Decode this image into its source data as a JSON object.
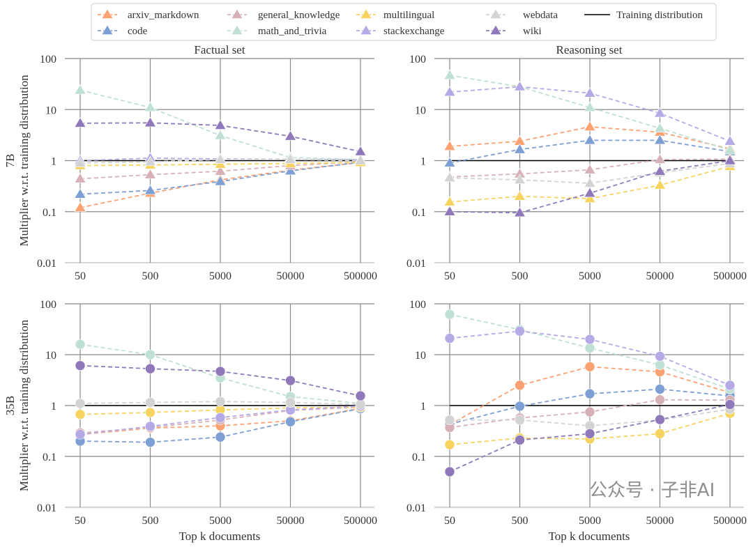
{
  "legend": {
    "placement": "top-center",
    "items": [
      {
        "key": "arxiv_markdown",
        "label": "arxiv_markdown"
      },
      {
        "key": "code",
        "label": "code"
      },
      {
        "key": "general_knowledge",
        "label": "general_knowledge"
      },
      {
        "key": "math_and_trivia",
        "label": "math_and_trivia"
      },
      {
        "key": "multilingual",
        "label": "multilingual"
      },
      {
        "key": "stackexchange",
        "label": "stackexchange"
      },
      {
        "key": "webdata",
        "label": "webdata"
      },
      {
        "key": "wiki",
        "label": "wiki"
      }
    ],
    "reference_label": "Training distribution"
  },
  "colors": {
    "arxiv_markdown": "#fca272",
    "code": "#7d9fd3",
    "general_knowledge": "#d8b1b7",
    "math_and_trivia": "#bfe0d3",
    "multilingual": "#f7d35f",
    "stackexchange": "#b5a9e6",
    "webdata": "#d3d3d3",
    "wiki": "#9079bb",
    "reference": "#000000",
    "grid": "#888888"
  },
  "watermark": "公众号 · 子非AI",
  "row_labels": [
    "7B",
    "35B"
  ],
  "chart_data": [
    {
      "type": "line",
      "title": "Factual set",
      "row": "7B",
      "ylabel": "Multiplier w.r.t. training distribution",
      "xlabel": "",
      "marker": "triangle",
      "yscale": "log",
      "ylim": [
        0.01,
        100
      ],
      "grid": true,
      "reference_y": 1,
      "x": [
        "50",
        "500",
        "5000",
        "50000",
        "500000"
      ],
      "yticks": [
        "0.01",
        "0.1",
        "1",
        "10",
        "100"
      ],
      "series": [
        {
          "name": "arxiv_markdown",
          "values": [
            0.12,
            0.23,
            0.42,
            0.65,
            0.92
          ]
        },
        {
          "name": "code",
          "values": [
            0.22,
            0.26,
            0.39,
            0.63,
            0.93
          ]
        },
        {
          "name": "general_knowledge",
          "values": [
            0.44,
            0.53,
            0.62,
            0.8,
            0.95
          ]
        },
        {
          "name": "math_and_trivia",
          "values": [
            24,
            11,
            3.1,
            1.15,
            1.05
          ]
        },
        {
          "name": "multilingual",
          "values": [
            0.8,
            0.82,
            0.85,
            0.88,
            0.92
          ]
        },
        {
          "name": "stackexchange",
          "values": [
            1.0,
            1.12,
            1.08,
            1.06,
            1.04
          ]
        },
        {
          "name": "webdata",
          "values": [
            0.9,
            0.95,
            1.05,
            1.05,
            1.0
          ]
        },
        {
          "name": "wiki",
          "values": [
            5.4,
            5.5,
            4.9,
            3.0,
            1.5
          ]
        }
      ]
    },
    {
      "type": "line",
      "title": "Reasoning set",
      "row": "7B",
      "ylabel": "",
      "xlabel": "",
      "marker": "triangle",
      "yscale": "log",
      "ylim": [
        0.01,
        100
      ],
      "grid": true,
      "reference_y": 1,
      "x": [
        "50",
        "500",
        "5000",
        "50000",
        "500000"
      ],
      "yticks": [
        "0.01",
        "0.1",
        "1",
        "10",
        "100"
      ],
      "series": [
        {
          "name": "arxiv_markdown",
          "values": [
            1.9,
            2.4,
            4.6,
            3.6,
            1.7
          ]
        },
        {
          "name": "code",
          "values": [
            0.9,
            1.65,
            2.5,
            2.5,
            1.5
          ]
        },
        {
          "name": "general_knowledge",
          "values": [
            0.48,
            0.55,
            0.66,
            1.05,
            1.07
          ]
        },
        {
          "name": "math_and_trivia",
          "values": [
            47,
            28,
            11,
            4.3,
            1.6
          ]
        },
        {
          "name": "multilingual",
          "values": [
            0.155,
            0.2,
            0.18,
            0.33,
            0.77
          ]
        },
        {
          "name": "stackexchange",
          "values": [
            22,
            28,
            21,
            8.5,
            2.4
          ]
        },
        {
          "name": "webdata",
          "values": [
            0.46,
            0.42,
            0.36,
            0.58,
            0.88
          ]
        },
        {
          "name": "wiki",
          "values": [
            0.1,
            0.095,
            0.23,
            0.62,
            1.0
          ]
        }
      ]
    },
    {
      "type": "line",
      "title": "",
      "row": "35B",
      "ylabel": "Multiplier w.r.t. training distribution",
      "xlabel": "Top k documents",
      "marker": "circle",
      "yscale": "log",
      "ylim": [
        0.01,
        100
      ],
      "grid": true,
      "reference_y": 1,
      "x": [
        "50",
        "500",
        "5000",
        "50000",
        "500000"
      ],
      "yticks": [
        "0.01",
        "0.1",
        "1",
        "10",
        "100"
      ],
      "series": [
        {
          "name": "arxiv_markdown",
          "values": [
            0.27,
            0.36,
            0.4,
            0.5,
            0.88
          ]
        },
        {
          "name": "code",
          "values": [
            0.2,
            0.19,
            0.24,
            0.48,
            0.87
          ]
        },
        {
          "name": "general_knowledge",
          "values": [
            0.29,
            0.37,
            0.52,
            0.8,
            0.93
          ]
        },
        {
          "name": "math_and_trivia",
          "values": [
            16,
            10,
            3.5,
            1.5,
            1.1
          ]
        },
        {
          "name": "multilingual",
          "values": [
            0.67,
            0.73,
            0.82,
            0.9,
            0.93
          ]
        },
        {
          "name": "stackexchange",
          "values": [
            0.27,
            0.39,
            0.58,
            0.82,
            0.98
          ]
        },
        {
          "name": "webdata",
          "values": [
            1.1,
            1.15,
            1.2,
            1.15,
            1.05
          ]
        },
        {
          "name": "wiki",
          "values": [
            6.1,
            5.3,
            4.7,
            3.1,
            1.55
          ]
        }
      ]
    },
    {
      "type": "line",
      "title": "",
      "row": "35B",
      "ylabel": "",
      "xlabel": "Top k documents",
      "marker": "circle",
      "yscale": "log",
      "ylim": [
        0.01,
        100
      ],
      "grid": true,
      "reference_y": 1,
      "x": [
        "50",
        "500",
        "5000",
        "50000",
        "500000"
      ],
      "yticks": [
        "0.01",
        "0.1",
        "1",
        "10",
        "100"
      ],
      "series": [
        {
          "name": "arxiv_markdown",
          "values": [
            0.42,
            2.5,
            5.8,
            4.6,
            1.8
          ]
        },
        {
          "name": "code",
          "values": [
            0.43,
            0.97,
            1.7,
            2.1,
            1.55
          ]
        },
        {
          "name": "general_knowledge",
          "values": [
            0.37,
            0.57,
            0.75,
            1.3,
            1.28
          ]
        },
        {
          "name": "math_and_trivia",
          "values": [
            62,
            31,
            13.5,
            6.3,
            2.1
          ]
        },
        {
          "name": "multilingual",
          "values": [
            0.17,
            0.23,
            0.22,
            0.28,
            0.7
          ]
        },
        {
          "name": "stackexchange",
          "values": [
            21,
            29,
            20,
            9.3,
            2.5
          ]
        },
        {
          "name": "webdata",
          "values": [
            0.52,
            0.52,
            0.4,
            0.52,
            0.85
          ]
        },
        {
          "name": "wiki",
          "values": [
            0.05,
            0.21,
            0.28,
            0.53,
            1.05
          ]
        }
      ]
    }
  ]
}
